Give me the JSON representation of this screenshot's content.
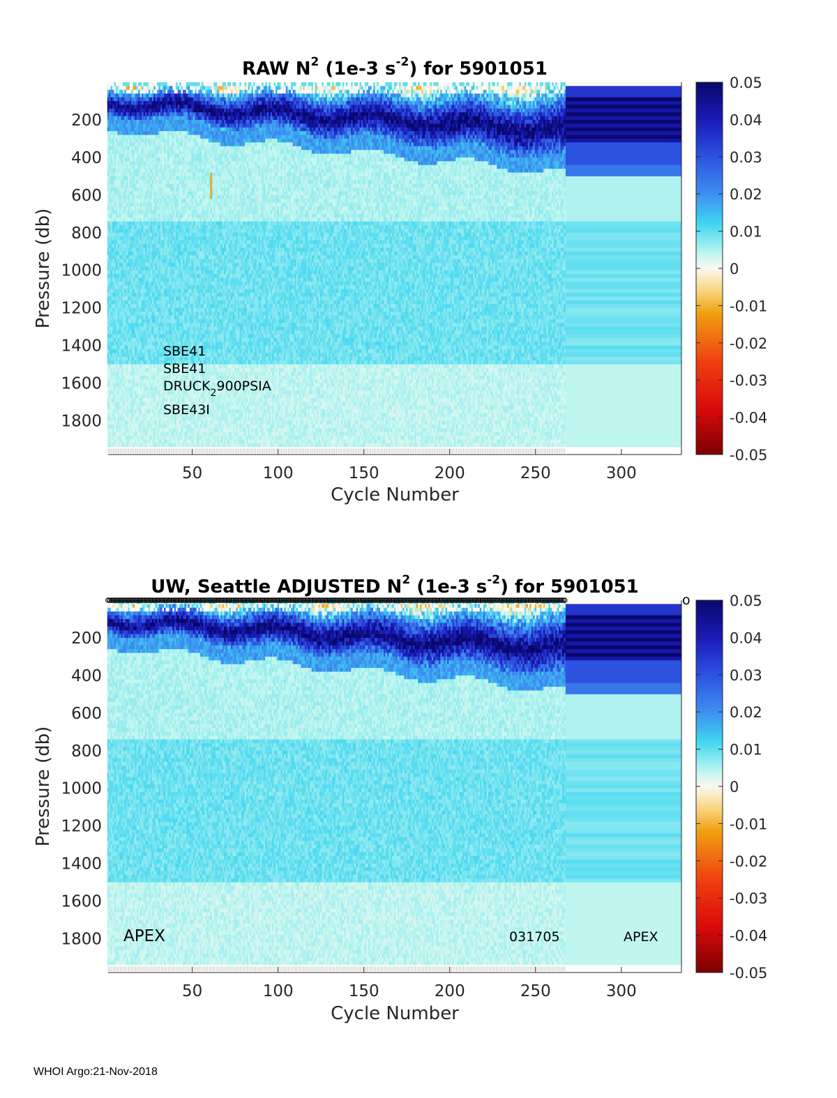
{
  "footer": "WHOI Argo:21-Nov-2018",
  "colorbar": {
    "range": [
      -0.05,
      0.05
    ],
    "ticks": [
      "0.05",
      "0.04",
      "0.03",
      "0.02",
      "0.01",
      "0",
      "-0.01",
      "-0.02",
      "-0.03",
      "-0.04",
      "-0.05"
    ],
    "colormap": "jet-like diverging: dark red (-0.05) → red → orange → white (0) → cyan → blue → dark navy (0.05)"
  },
  "chart_data": [
    {
      "type": "heatmap",
      "title": {
        "pre": "RAW N",
        "sup1": "2",
        "mid": " (1e-3 s",
        "sup2": "-2",
        "post": ") for 5901051"
      },
      "xlabel": "Cycle Number",
      "ylabel": "Pressure (db)",
      "xlim": [
        1,
        335
      ],
      "ylim": [
        0,
        1980
      ],
      "y_reversed": true,
      "xticks": [
        "50",
        "100",
        "150",
        "200",
        "250",
        "300"
      ],
      "xtick_values": [
        50,
        100,
        150,
        200,
        250,
        300
      ],
      "yticks": [
        "200",
        "400",
        "600",
        "800",
        "1000",
        "1200",
        "1400",
        "1600",
        "1800"
      ],
      "ytick_values": [
        200,
        400,
        600,
        800,
        1000,
        1200,
        1400,
        1600,
        1800
      ],
      "data_cycles_max": 267,
      "annotations": {
        "sensor1": "SBE41",
        "sensor2": "SBE41",
        "druck_pre": "DRUCK",
        "druck_sub": "2",
        "druck_post": "900PSIA",
        "sensor4": "SBE43I"
      },
      "features": {
        "negative_spike_cycle": 61,
        "negative_spike_pressure": [
          480,
          600
        ]
      }
    },
    {
      "type": "heatmap",
      "title": {
        "pre": "UW, Seattle  ADJUSTED N",
        "sup1": "2",
        "mid": " (1e-3 s",
        "sup2": "-2",
        "post": ") for 5901051"
      },
      "xlabel": "Cycle Number",
      "ylabel": "Pressure (db)",
      "xlim": [
        1,
        335
      ],
      "ylim": [
        0,
        1980
      ],
      "y_reversed": true,
      "xticks": [
        "50",
        "100",
        "150",
        "200",
        "250",
        "300"
      ],
      "xtick_values": [
        50,
        100,
        150,
        200,
        250,
        300
      ],
      "yticks": [
        "200",
        "400",
        "600",
        "800",
        "1000",
        "1200",
        "1400",
        "1600",
        "1800"
      ],
      "ytick_values": [
        200,
        400,
        600,
        800,
        1000,
        1200,
        1400,
        1600,
        1800
      ],
      "data_cycles_max": 267,
      "annotations": {
        "left": "APEX",
        "middle": "031705",
        "right": "APEX",
        "top_right_marker": "o"
      }
    }
  ]
}
